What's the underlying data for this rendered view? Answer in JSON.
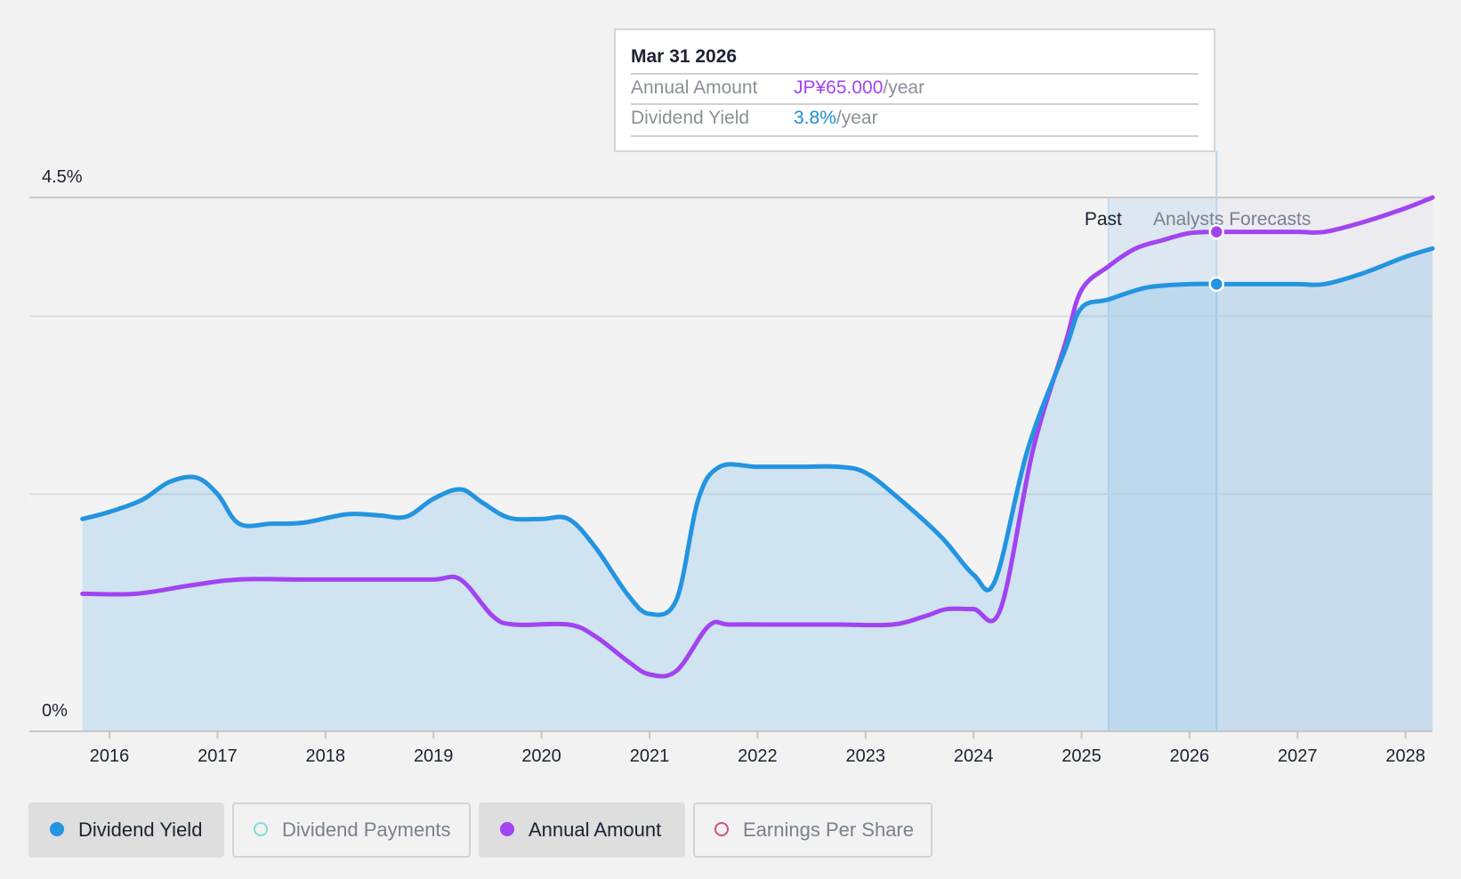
{
  "tooltip": {
    "date": "Mar 31 2026",
    "rows": [
      {
        "label": "Annual Amount",
        "value": "JP¥65.000",
        "unit": "/year"
      },
      {
        "label": "Dividend Yield",
        "value": "3.8%",
        "unit": "/year"
      }
    ]
  },
  "legend": [
    {
      "label": "Dividend Yield",
      "color": "#2394e0",
      "active": true,
      "filled": true
    },
    {
      "label": "Dividend Payments",
      "color": "#7de0d6",
      "active": false,
      "filled": false
    },
    {
      "label": "Annual Amount",
      "color": "#a144f0",
      "active": true,
      "filled": true
    },
    {
      "label": "Earnings Per Share",
      "color": "#cf4f8a",
      "active": false,
      "filled": false
    }
  ],
  "chart_data": {
    "type": "line",
    "x_range": [
      2015.25,
      2028.25
    ],
    "y_axis": {
      "min": 0,
      "max": 4.5,
      "tick_labels": [
        "0%",
        "4.5%"
      ]
    },
    "x_ticks": [
      "2016",
      "2017",
      "2018",
      "2019",
      "2020",
      "2021",
      "2022",
      "2023",
      "2024",
      "2025",
      "2026",
      "2027",
      "2028"
    ],
    "regions": {
      "past_label": "Past",
      "forecast_label": "Analysts Forecasts",
      "past_end": 2025.25,
      "highlight_end": 2026.25
    },
    "marker_x": 2026.25,
    "series": [
      {
        "name": "Dividend Yield",
        "color": "#2394e0",
        "area": true,
        "points": [
          [
            2015.75,
            1.79
          ],
          [
            2016.0,
            1.85
          ],
          [
            2016.3,
            1.95
          ],
          [
            2016.55,
            2.1
          ],
          [
            2016.8,
            2.14
          ],
          [
            2017.0,
            2.0
          ],
          [
            2017.2,
            1.75
          ],
          [
            2017.5,
            1.75
          ],
          [
            2017.8,
            1.76
          ],
          [
            2018.2,
            1.83
          ],
          [
            2018.5,
            1.82
          ],
          [
            2018.75,
            1.81
          ],
          [
            2019.0,
            1.96
          ],
          [
            2019.25,
            2.04
          ],
          [
            2019.45,
            1.93
          ],
          [
            2019.7,
            1.8
          ],
          [
            2020.0,
            1.79
          ],
          [
            2020.25,
            1.79
          ],
          [
            2020.5,
            1.55
          ],
          [
            2020.8,
            1.15
          ],
          [
            2021.0,
            0.99
          ],
          [
            2021.25,
            1.11
          ],
          [
            2021.45,
            1.95
          ],
          [
            2021.65,
            2.23
          ],
          [
            2022.0,
            2.23
          ],
          [
            2022.4,
            2.23
          ],
          [
            2022.75,
            2.23
          ],
          [
            2023.0,
            2.18
          ],
          [
            2023.3,
            1.97
          ],
          [
            2023.7,
            1.64
          ],
          [
            2024.0,
            1.32
          ],
          [
            2024.2,
            1.27
          ],
          [
            2024.5,
            2.37
          ],
          [
            2024.85,
            3.22
          ],
          [
            2025.0,
            3.57
          ],
          [
            2025.25,
            3.64
          ],
          [
            2025.6,
            3.74
          ],
          [
            2026.0,
            3.77
          ],
          [
            2026.25,
            3.77
          ],
          [
            2026.6,
            3.77
          ],
          [
            2027.0,
            3.77
          ],
          [
            2027.25,
            3.77
          ],
          [
            2027.6,
            3.86
          ],
          [
            2028.0,
            4.0
          ],
          [
            2028.25,
            4.07
          ]
        ]
      },
      {
        "name": "Annual Amount",
        "unit": "JP¥",
        "color": "#a144f0",
        "area": false,
        "points": [
          [
            2015.75,
            1.16
          ],
          [
            2016.25,
            1.16
          ],
          [
            2016.75,
            1.23
          ],
          [
            2017.2,
            1.28
          ],
          [
            2017.8,
            1.28
          ],
          [
            2018.5,
            1.28
          ],
          [
            2019.0,
            1.28
          ],
          [
            2019.25,
            1.28
          ],
          [
            2019.55,
            0.97
          ],
          [
            2019.75,
            0.9
          ],
          [
            2020.25,
            0.9
          ],
          [
            2020.5,
            0.8
          ],
          [
            2020.8,
            0.59
          ],
          [
            2021.0,
            0.48
          ],
          [
            2021.25,
            0.51
          ],
          [
            2021.55,
            0.89
          ],
          [
            2021.75,
            0.9
          ],
          [
            2022.25,
            0.9
          ],
          [
            2022.75,
            0.9
          ],
          [
            2023.25,
            0.9
          ],
          [
            2023.55,
            0.97
          ],
          [
            2023.75,
            1.03
          ],
          [
            2024.0,
            1.03
          ],
          [
            2024.25,
            1.03
          ],
          [
            2024.55,
            2.37
          ],
          [
            2024.85,
            3.27
          ],
          [
            2025.0,
            3.72
          ],
          [
            2025.25,
            3.92
          ],
          [
            2025.5,
            4.07
          ],
          [
            2025.75,
            4.14
          ],
          [
            2026.0,
            4.2
          ],
          [
            2026.25,
            4.21
          ],
          [
            2026.6,
            4.21
          ],
          [
            2027.0,
            4.21
          ],
          [
            2027.25,
            4.21
          ],
          [
            2027.6,
            4.29
          ],
          [
            2028.0,
            4.41
          ],
          [
            2028.25,
            4.5
          ]
        ]
      }
    ]
  }
}
